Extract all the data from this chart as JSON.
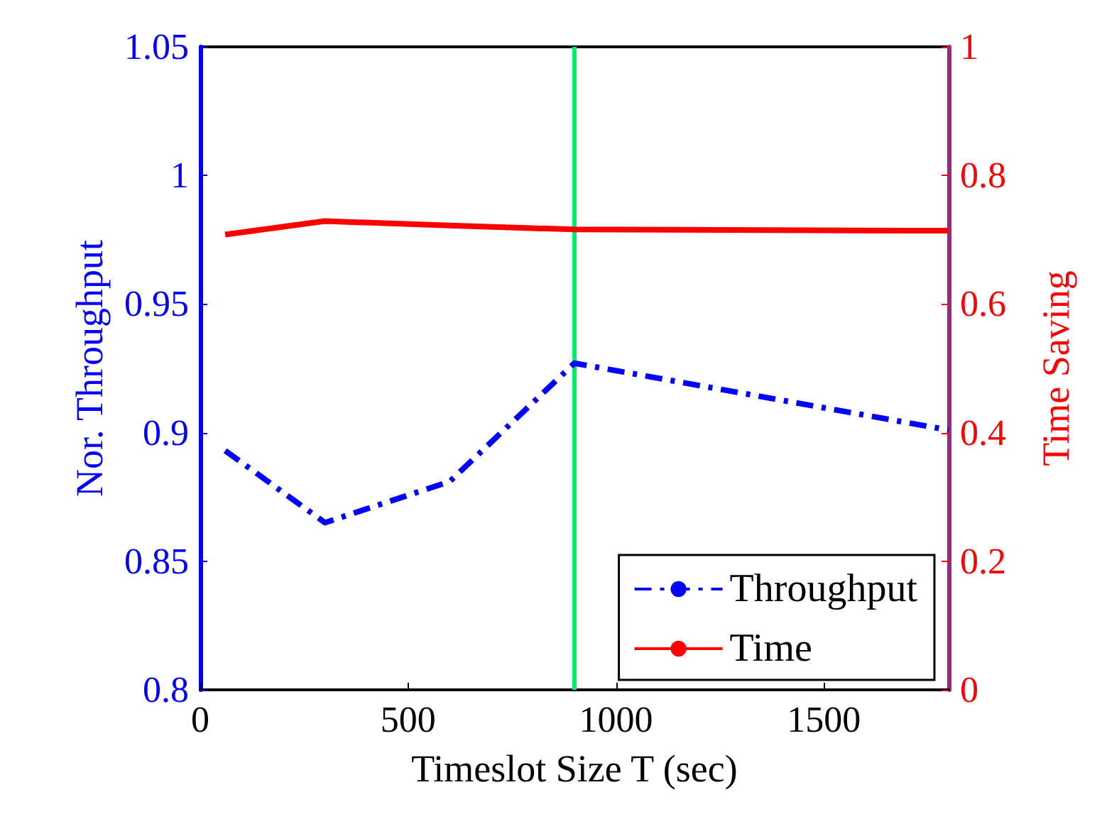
{
  "chart_data": {
    "type": "line",
    "xlabel": "Timeslot Size T (sec)",
    "ylabel": "Nor. Throughput",
    "y2label": "Time Saving",
    "xlim": [
      0,
      1800
    ],
    "xticks": [
      0,
      500,
      1000,
      1500
    ],
    "ylim": [
      0.8,
      1.05
    ],
    "yticks": [
      0.8,
      0.85,
      0.9,
      0.95,
      1,
      1.05
    ],
    "y2lim": [
      0,
      1
    ],
    "y2ticks": [
      0,
      0.2,
      0.4,
      0.6,
      0.8,
      1
    ],
    "grid": false,
    "legend": "bottom right",
    "marker": "none",
    "series": [
      {
        "name": "Throughput",
        "color": "#0000ff",
        "line_style": "dashdot",
        "x": [
          60,
          300,
          600,
          900,
          1800
        ],
        "values": [
          0.893,
          0.865,
          0.881,
          0.927,
          0.901
        ]
      },
      {
        "name": "Time",
        "color": "#ff0000",
        "line_style": "solid",
        "axis": "y2",
        "x": [
          60,
          300,
          600,
          900,
          1800
        ],
        "values": [
          0.708,
          0.729,
          0.722,
          0.716,
          0.714
        ]
      }
    ],
    "ref_lines": [
      {
        "axis": "x",
        "value": 900,
        "color": "#00ee66"
      }
    ]
  }
}
